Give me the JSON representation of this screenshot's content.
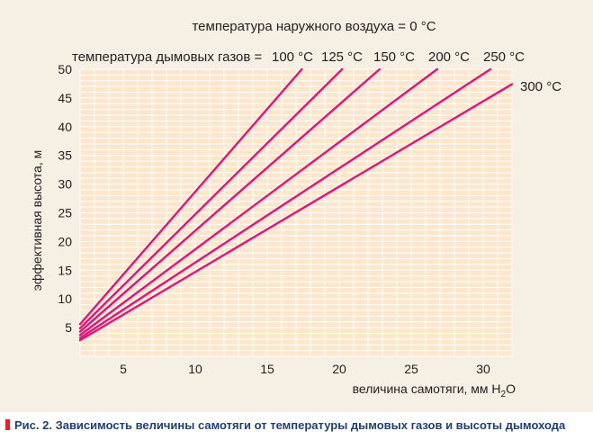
{
  "colors": {
    "series": "#e0147c",
    "plot_bg": "#fce6cc",
    "grid": "#ffffff",
    "frame_bg": "#f6efe4",
    "caption": "#1f3f73",
    "caption_marker": "#d6262e"
  },
  "caption": {
    "text": "Рис. 2. Зависимость величины самотяги от температуры дымовых газов и высоты дымохода"
  },
  "chart_data": {
    "type": "line",
    "title": "температура наружного воздуха = 0 °С",
    "subtitle_prefix": "температура дымовых газов = ",
    "xlabel": "величина самотяги, мм H",
    "xlabel_sub": "2",
    "xlabel_end": "O",
    "ylabel": "эффективная высота, м",
    "xlim": [
      2,
      32
    ],
    "ylim": [
      0,
      50
    ],
    "x_ticks": [
      5,
      10,
      15,
      20,
      25,
      30
    ],
    "y_ticks": [
      5,
      10,
      15,
      20,
      25,
      30,
      35,
      40,
      45,
      50
    ],
    "grid": true,
    "series": [
      {
        "name": "100 °С",
        "x": [
          2,
          17.4
        ],
        "y": [
          5.6,
          50
        ]
      },
      {
        "name": "125 °С",
        "x": [
          2,
          20.2
        ],
        "y": [
          4.9,
          50
        ]
      },
      {
        "name": "150 °С",
        "x": [
          2,
          22.8
        ],
        "y": [
          4.3,
          50
        ]
      },
      {
        "name": "200 °С",
        "x": [
          2,
          26.8
        ],
        "y": [
          3.7,
          50
        ]
      },
      {
        "name": "250 °С",
        "x": [
          2,
          30.5
        ],
        "y": [
          3.2,
          50
        ]
      },
      {
        "name": "300 °С",
        "x": [
          2,
          32
        ],
        "y": [
          2.8,
          47.4
        ]
      }
    ]
  }
}
